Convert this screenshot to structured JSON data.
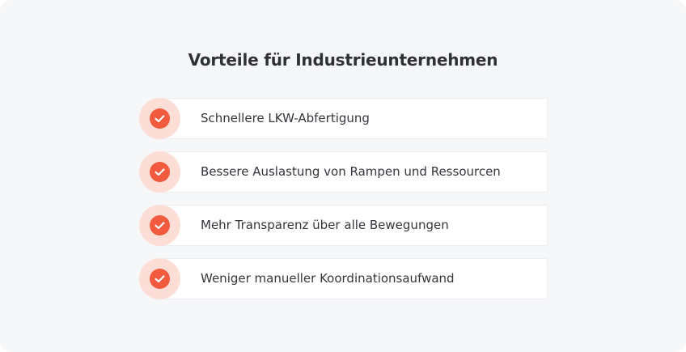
{
  "title": "Vorteile für Industrieunternehmen",
  "benefits": [
    {
      "label": "Schnellere LKW-Abfertigung",
      "icon": "check-icon"
    },
    {
      "label": "Bessere Auslastung von Rampen und Ressourcen",
      "icon": "check-icon"
    },
    {
      "label": "Mehr Transparenz über alle Bewegungen",
      "icon": "check-icon"
    },
    {
      "label": "Weniger manueller Koordinationsaufwand",
      "icon": "check-icon"
    }
  ],
  "colors": {
    "background": "#f6f7f9",
    "accent": "#f15a3c",
    "accent_light": "#fcded7",
    "text": "#33363b"
  }
}
